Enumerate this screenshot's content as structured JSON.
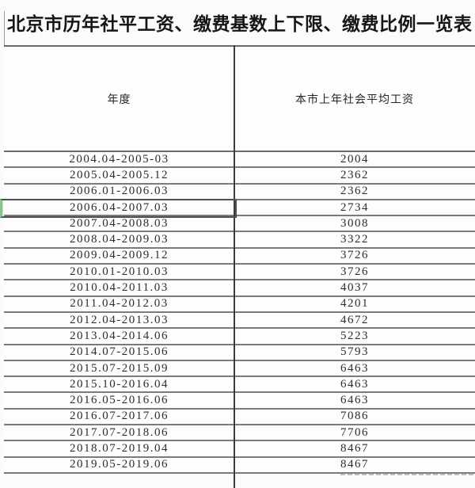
{
  "title": "北京市历年社平工资、缴费基数上下限、缴费比例一览表",
  "table": {
    "columns": [
      {
        "key": "period",
        "label": "年度"
      },
      {
        "key": "wage",
        "label": "本市上年社会平均工资"
      }
    ],
    "rows": [
      {
        "period": "2004.04-2005-03",
        "wage": "2004"
      },
      {
        "period": "2005.04-2005.12",
        "wage": "2362"
      },
      {
        "period": "2006.01-2006.03",
        "wage": "2362"
      },
      {
        "period": "2006.04-2007.03",
        "wage": "2734"
      },
      {
        "period": "2007.04-2008.03",
        "wage": "3008"
      },
      {
        "period": "2008.04-2009.03",
        "wage": "3322"
      },
      {
        "period": "2009.04-2009.12",
        "wage": "3726"
      },
      {
        "period": "2010.01-2010.03",
        "wage": "3726"
      },
      {
        "period": "2010.04-2011.03",
        "wage": "4037"
      },
      {
        "period": "2011.04-2012.03",
        "wage": "4201"
      },
      {
        "period": "2012.04-2013.03",
        "wage": "4672"
      },
      {
        "period": "2013.04-2014.06",
        "wage": "5223"
      },
      {
        "period": "2014.07-2015.06",
        "wage": "5793"
      },
      {
        "period": "2015.07-2015.09",
        "wage": "6463"
      },
      {
        "period": "2015.10-2016.04",
        "wage": "6463"
      },
      {
        "period": "2016.05-2016.06",
        "wage": "6463"
      },
      {
        "period": "2016.07-2017.06",
        "wage": "7086"
      },
      {
        "period": "2017.07-2018.06",
        "wage": "7706"
      },
      {
        "period": "2018.07-2019.04",
        "wage": "8467"
      },
      {
        "period": "2019.05-2019.06",
        "wage": "8467"
      }
    ]
  },
  "selection": {
    "row_index": 3,
    "column": "period"
  },
  "colors": {
    "selection_outline": "#4f4f4f",
    "selection_green": "#8cc48c",
    "grid_line": "#7b7b7b",
    "column_divider": "#3c3c3c"
  }
}
